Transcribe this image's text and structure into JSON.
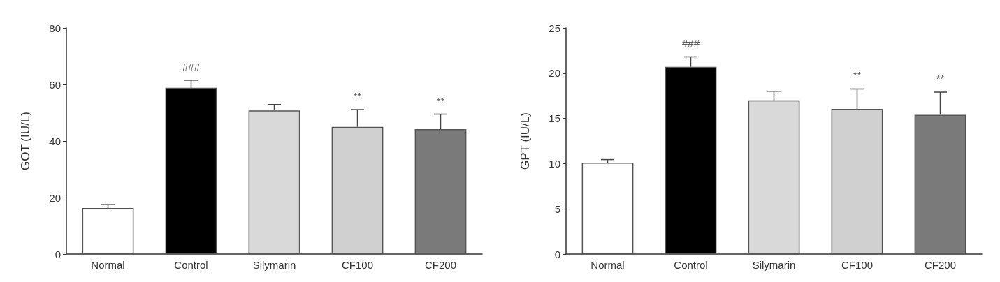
{
  "chart_data": [
    {
      "type": "bar",
      "ylabel": "GOT (IU/L)",
      "categories": [
        "Normal",
        "Control",
        "Silymarin",
        "CF100",
        "CF200"
      ],
      "values": [
        16.3,
        58.8,
        50.8,
        45.0,
        44.2
      ],
      "colors": [
        "#ffffff",
        "#000000",
        "#d9d9d9",
        "#d0d0d0",
        "#7a7a7a"
      ],
      "errors": [
        [
          16.3,
          17.5
        ],
        [
          58.8,
          61.5
        ],
        [
          50.8,
          52.9
        ],
        [
          45.0,
          51.1
        ],
        [
          44.2,
          49.5
        ]
      ],
      "ylim": [
        0,
        80
      ],
      "yticks": [
        0,
        20,
        40,
        60,
        80
      ],
      "grid": false,
      "annotations": [
        {
          "text": "###",
          "x": "Control",
          "y": 61.5
        },
        {
          "text": "**",
          "x": "CF100",
          "y": 51.1
        },
        {
          "text": "**",
          "x": "CF200",
          "y": 49.5
        }
      ]
    },
    {
      "type": "bar",
      "ylabel": "GPT (IU/L)",
      "categories": [
        "Normal",
        "Control",
        "Silymarin",
        "CF100",
        "CF200"
      ],
      "values": [
        10.1,
        20.7,
        17.0,
        16.05,
        15.4
      ],
      "colors": [
        "#ffffff",
        "#000000",
        "#d9d9d9",
        "#d0d0d0",
        "#7a7a7a"
      ],
      "errors": [
        [
          10.1,
          10.45
        ],
        [
          20.7,
          21.8
        ],
        [
          17.0,
          18.0
        ],
        [
          16.05,
          18.25
        ],
        [
          15.4,
          17.9
        ]
      ],
      "ylim": [
        0,
        25
      ],
      "yticks": [
        0,
        5,
        10,
        15,
        20,
        25
      ],
      "grid": false,
      "annotations": [
        {
          "text": "###",
          "x": "Control",
          "y": 21.8
        },
        {
          "text": "**",
          "x": "CF100",
          "y": 18.25
        },
        {
          "text": "**",
          "x": "CF200",
          "y": 17.9
        }
      ]
    }
  ]
}
